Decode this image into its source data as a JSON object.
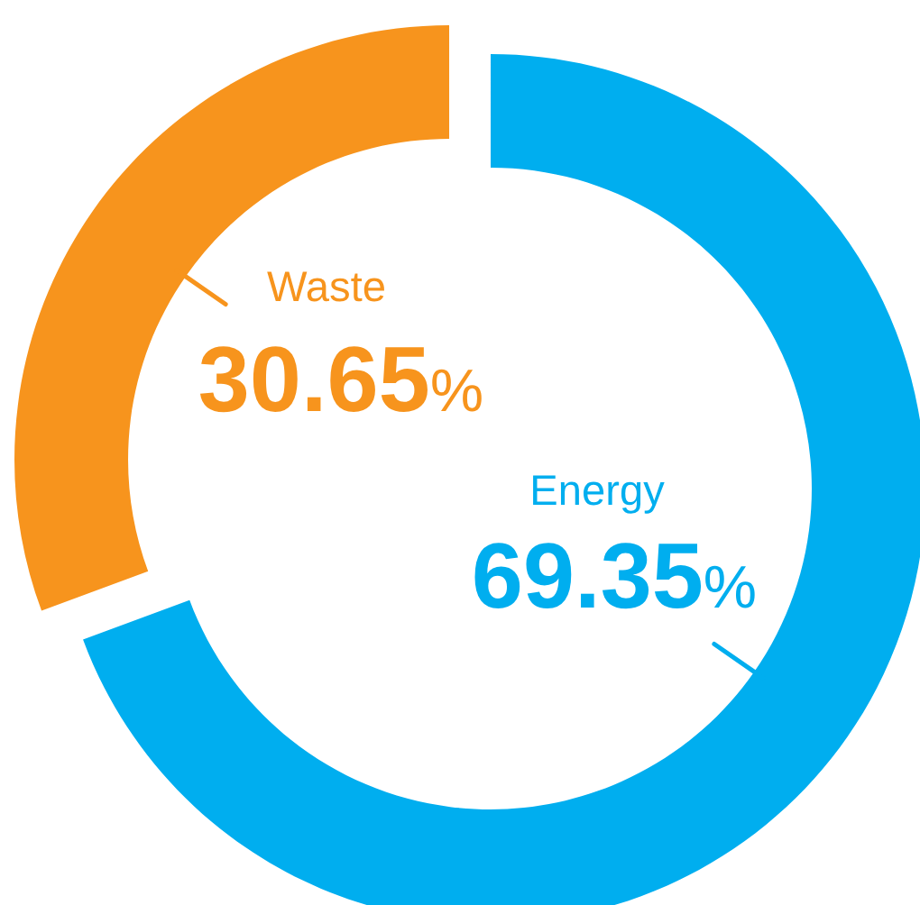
{
  "chart_data": {
    "type": "donut",
    "categories": [
      "Energy",
      "Waste"
    ],
    "values": [
      69.35,
      30.65
    ],
    "colors": [
      "#00aeef",
      "#f7941d"
    ],
    "value_labels": [
      "69.35%",
      "30.65%"
    ]
  }
}
